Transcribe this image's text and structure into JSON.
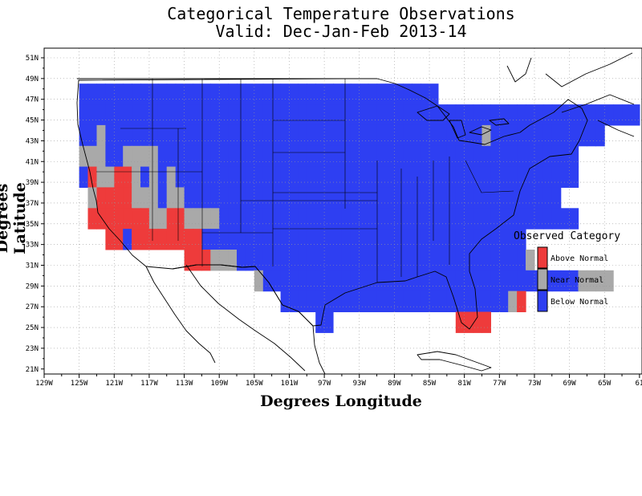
{
  "title": "Categorical Temperature Observations",
  "subtitle": "Valid: Dec-Jan-Feb 2013-14",
  "xlabel": "Degrees Longitude",
  "ylabel": "Degrees Latitude",
  "x_ticks": [
    "129W",
    "125W",
    "121W",
    "117W",
    "113W",
    "109W",
    "105W",
    "101W",
    "97W",
    "93W",
    "89W",
    "85W",
    "81W",
    "77W",
    "73W",
    "69W",
    "65W",
    "61"
  ],
  "y_ticks": [
    "51N",
    "49N",
    "47N",
    "45N",
    "43N",
    "41N",
    "39N",
    "37N",
    "35N",
    "33N",
    "31N",
    "29N",
    "27N",
    "25N",
    "23N",
    "21N"
  ],
  "legend": {
    "title": "Observed Category",
    "items": [
      {
        "label": "Above Normal",
        "color": "#ee3b3b"
      },
      {
        "label": "Near Normal",
        "color": "#a9a9a9"
      },
      {
        "label": "Below Normal",
        "color": "#2e3ff2"
      }
    ]
  },
  "chart_data": {
    "type": "heatmap",
    "title": "Categorical Temperature Observations",
    "subtitle": "Valid: Dec-Jan-Feb 2013-14",
    "xlabel": "Degrees Longitude",
    "ylabel": "Degrees Latitude",
    "xlim": [
      -129,
      -61
    ],
    "ylim": [
      21,
      52
    ],
    "grid": true,
    "legend_position": "right",
    "cell_size_degrees": 2,
    "categories": {
      "A": "Above Normal",
      "N": "Near Normal",
      "B": "Below Normal"
    },
    "colors": {
      "A": "#ee3b3b",
      "N": "#a9a9a9",
      "B": "#2e3ff2"
    },
    "rows": [
      {
        "lat": [
          47,
          49
        ],
        "segments": [
          {
            "lon": -125,
            "cats": "BBBBBBBBBBBBBBBBBBBBBBBBBBBBBBBBBBBBBBBBB"
          }
        ]
      },
      {
        "lat": [
          45,
          47
        ],
        "segments": [
          {
            "lon": -125,
            "cats": "BBBBBBBBBBBBBBBBBBBBBBBBBBBBBBBBBBBBBBBBBBBBBBBBBBBBBBBBBBBBBBBB"
          }
        ]
      },
      {
        "lat": [
          43,
          45
        ],
        "segments": [
          {
            "lon": -125,
            "cats": "BBNBBBBBBBBBBBBBBBBBBBBBBBBBBBBBBBBBBBBBBBBBBBNBBBBBBBBBBBBB"
          }
        ]
      },
      {
        "lat": [
          41,
          43
        ],
        "segments": [
          {
            "lon": -125,
            "cats": "NNNBBNNNNBBBBBBBBBBBBBBBBBBBBBBBBBBBBBBBBBBBBBBBBBBBBBBBB"
          }
        ]
      },
      {
        "lat": [
          39,
          41
        ],
        "segments": [
          {
            "lon": -125,
            "cats": "BANNAANBNBNBBBBBBBBBBBBBBBBBBBBBBBBBBBBBBBBBBBBBBBBBBBBBB"
          }
        ]
      },
      {
        "lat": [
          37,
          39
        ],
        "segments": [
          {
            "lon": -124,
            "cats": "NAAAANNNBNNBBBBBBBBBBBBBBBBBBBBBBBBBBBBBBBBBBBBBBBBBBB"
          }
        ]
      },
      {
        "lat": [
          35,
          37
        ],
        "segments": [
          {
            "lon": -124,
            "cats": "AAAAAAANNAANNNNBBBBBBBBBBBBBBBBBBBBBBBBBBBBBBBBBBBBBBBBB"
          }
        ]
      },
      {
        "lat": [
          33,
          35
        ],
        "segments": [
          {
            "lon": -122,
            "cats": "AABAAAAAAAABBBBBBBBBBBBBBBBBBBBBBBBBBBBBBBBBBBBB"
          }
        ]
      },
      {
        "lat": [
          31,
          33
        ],
        "segments": [
          {
            "lon": -113,
            "cats": "AAANNNBBBBBBBBBBBBBBBBBBBBBBBBBBBBBBBBBN"
          }
        ]
      },
      {
        "lat": [
          29,
          31
        ],
        "segments": [
          {
            "lon": -105,
            "cats": "NBBBBBBBBBBBBBBBBBBBBBBBBBBBBBBBBBBBBNNNN"
          }
        ]
      },
      {
        "lat": [
          27,
          29
        ],
        "segments": [
          {
            "lon": -102,
            "cats": "BBBBBBBBBBBBBBBBBBBBBBBBBBNA"
          }
        ]
      },
      {
        "lat": [
          25,
          27
        ],
        "segments": [
          {
            "lon": -98,
            "cats": "BB"
          },
          {
            "lon": -82,
            "cats": "AAAA"
          }
        ]
      }
    ]
  }
}
